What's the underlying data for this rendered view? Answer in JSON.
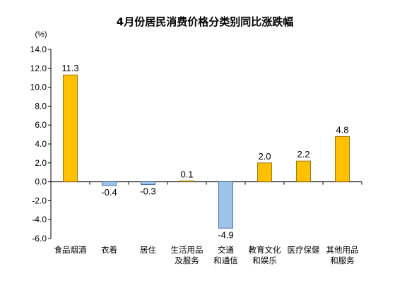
{
  "chart_data": {
    "type": "bar",
    "title": "4月份居民消费价格分类别同比涨跌幅",
    "ylabel": "(%)",
    "xlabel": "",
    "ylim": [
      -6,
      14
    ],
    "ytick_step": 2,
    "ytick_labels": [
      "14.0",
      "12.0",
      "10.0",
      "8.0",
      "6.0",
      "4.0",
      "2.0",
      "0.0",
      "-2.0",
      "-4.0",
      "-6.0"
    ],
    "categories": [
      [
        "食品烟酒"
      ],
      [
        "衣着"
      ],
      [
        "居住"
      ],
      [
        "生活用品",
        "及服务"
      ],
      [
        "交通",
        "和通信"
      ],
      [
        "教育文化",
        "和娱乐"
      ],
      [
        "医疗保健"
      ],
      [
        "其他用品",
        "和服务"
      ]
    ],
    "values": [
      11.3,
      -0.4,
      -0.3,
      0.1,
      -4.9,
      2.0,
      2.2,
      4.8
    ],
    "value_labels": [
      "11.3",
      "-0.4",
      "-0.3",
      "0.1",
      "-4.9",
      "2.0",
      "2.2",
      "4.8"
    ],
    "grid": false,
    "legend": "none",
    "colors": {
      "positive_fill": "#FFC000",
      "positive_stroke": "#7F6000",
      "negative_fill": "#9DC3E6",
      "negative_stroke": "#2E5597",
      "axis": "#000000"
    }
  }
}
